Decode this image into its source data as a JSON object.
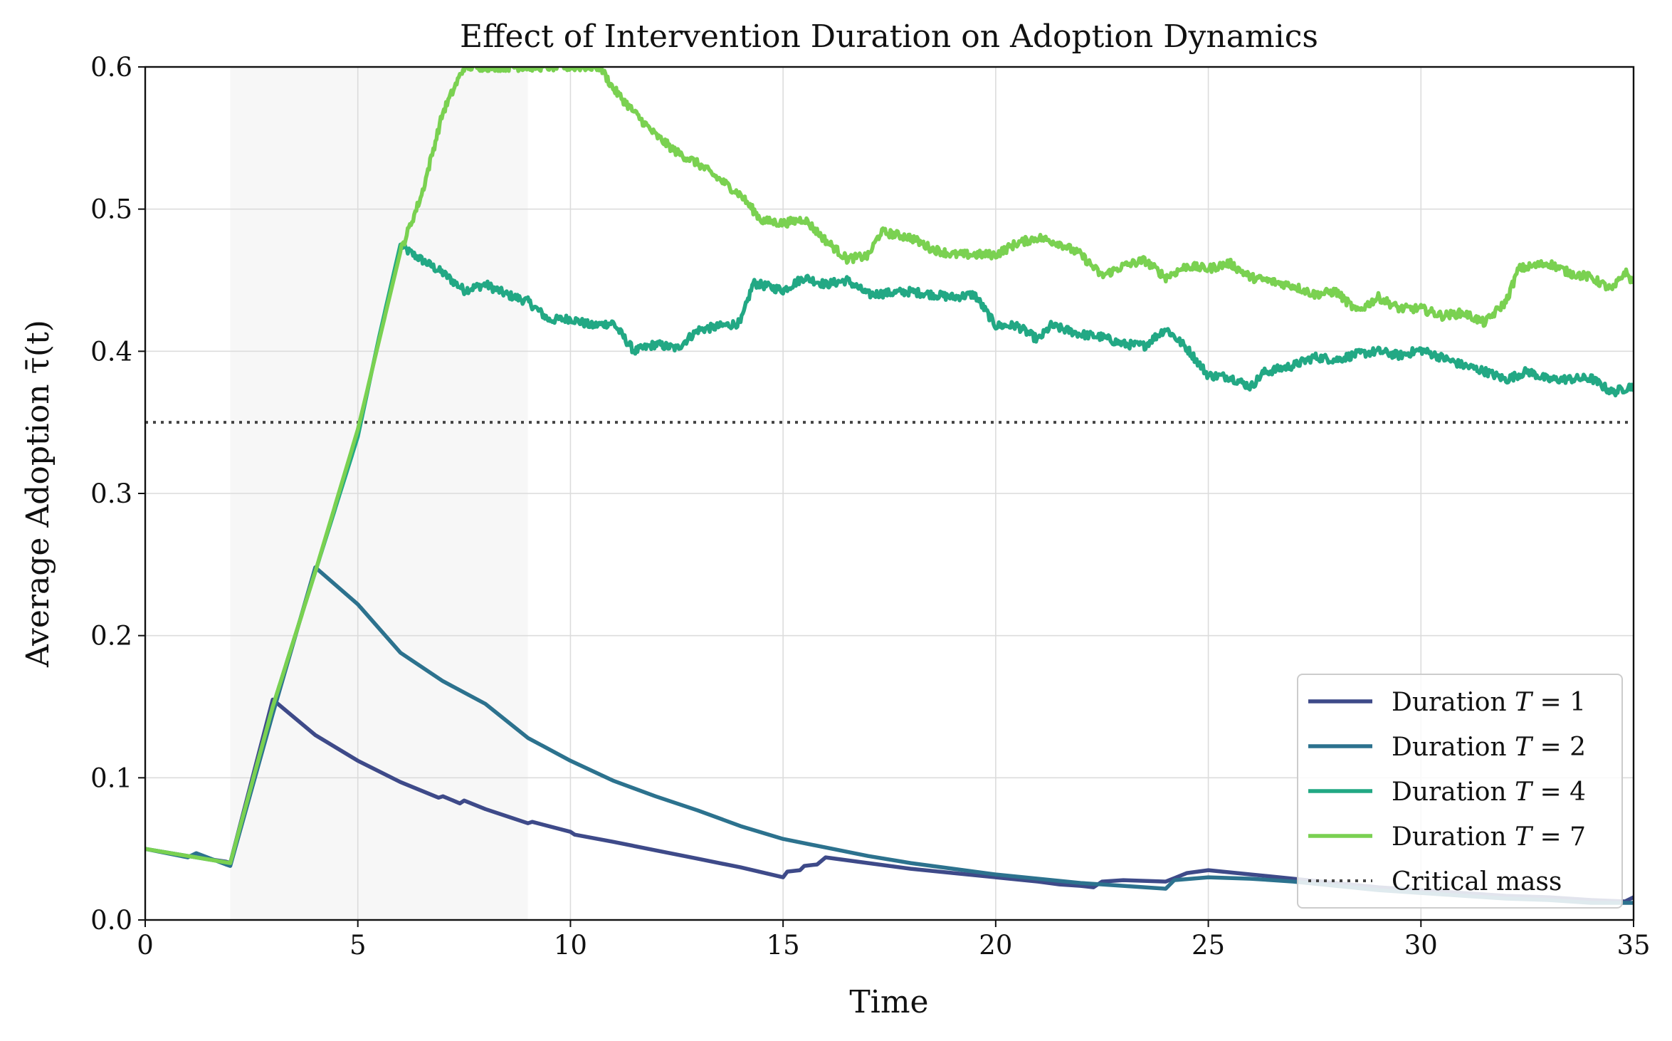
{
  "chart_data": {
    "type": "line",
    "title": "Effect of Intervention Duration on Adoption Dynamics",
    "xlabel": "Time",
    "ylabel": "Average Adoption τ̄(t)",
    "xlim": [
      0,
      35
    ],
    "ylim": [
      0,
      0.6
    ],
    "xticks": [
      0,
      5,
      10,
      15,
      20,
      25,
      30,
      35
    ],
    "xtick_labels": [
      "0",
      "5",
      "10",
      "15",
      "20",
      "25",
      "30",
      "35"
    ],
    "yticks": [
      0,
      0.1,
      0.2,
      0.3,
      0.4,
      0.5,
      0.6
    ],
    "ytick_labels": [
      "0.0",
      "0.1",
      "0.2",
      "0.3",
      "0.4",
      "0.5",
      "0.6"
    ],
    "grid": true,
    "legend_position": "lower-right",
    "shaded_region": {
      "x_start": 2,
      "x_end": 9,
      "color": "#f2f2f2"
    },
    "reference_line": {
      "name": "Critical mass",
      "y": 0.35,
      "style": "dotted",
      "color": "#444444"
    },
    "series": [
      {
        "name": "Duration T = 1",
        "label_prefix": "Duration ",
        "label_var": "T",
        "label_suffix": " = 1",
        "color": "#3e4a89",
        "points": [
          [
            0,
            0.05
          ],
          [
            1,
            0.045
          ],
          [
            1.9,
            0.041
          ],
          [
            2,
            0.04
          ],
          [
            3,
            0.155
          ],
          [
            4,
            0.13
          ],
          [
            5,
            0.112
          ],
          [
            6,
            0.097
          ],
          [
            6.9,
            0.086
          ],
          [
            7,
            0.087
          ],
          [
            7.4,
            0.082
          ],
          [
            7.5,
            0.084
          ],
          [
            8,
            0.078
          ],
          [
            9,
            0.068
          ],
          [
            9.1,
            0.069
          ],
          [
            10,
            0.062
          ],
          [
            10.1,
            0.06
          ],
          [
            11,
            0.055
          ],
          [
            12,
            0.049
          ],
          [
            13,
            0.043
          ],
          [
            14,
            0.037
          ],
          [
            15,
            0.03
          ],
          [
            15.1,
            0.034
          ],
          [
            15.4,
            0.035
          ],
          [
            15.5,
            0.038
          ],
          [
            15.8,
            0.039
          ],
          [
            16,
            0.044
          ],
          [
            17,
            0.04
          ],
          [
            18,
            0.036
          ],
          [
            19,
            0.033
          ],
          [
            20,
            0.03
          ],
          [
            21,
            0.027
          ],
          [
            21.5,
            0.025
          ],
          [
            22,
            0.024
          ],
          [
            22.3,
            0.023
          ],
          [
            22.5,
            0.027
          ],
          [
            23,
            0.028
          ],
          [
            24,
            0.027
          ],
          [
            24.5,
            0.033
          ],
          [
            25,
            0.035
          ],
          [
            26,
            0.032
          ],
          [
            27,
            0.029
          ],
          [
            28,
            0.026
          ],
          [
            29,
            0.023
          ],
          [
            30,
            0.021
          ],
          [
            31,
            0.019
          ],
          [
            32,
            0.017
          ],
          [
            33,
            0.016
          ],
          [
            34,
            0.014
          ],
          [
            34.8,
            0.013
          ],
          [
            35,
            0.016
          ]
        ]
      },
      {
        "name": "Duration T = 2",
        "label_prefix": "Duration ",
        "label_var": "T",
        "label_suffix": " = 2",
        "color": "#2c728e",
        "points": [
          [
            0,
            0.05
          ],
          [
            1,
            0.044
          ],
          [
            1.2,
            0.047
          ],
          [
            1.9,
            0.039
          ],
          [
            2,
            0.038
          ],
          [
            3,
            0.145
          ],
          [
            4,
            0.248
          ],
          [
            5,
            0.222
          ],
          [
            6,
            0.188
          ],
          [
            7,
            0.168
          ],
          [
            8,
            0.152
          ],
          [
            9,
            0.128
          ],
          [
            10,
            0.112
          ],
          [
            11,
            0.098
          ],
          [
            12,
            0.087
          ],
          [
            13,
            0.077
          ],
          [
            14,
            0.066
          ],
          [
            15,
            0.057
          ],
          [
            16,
            0.051
          ],
          [
            17,
            0.045
          ],
          [
            18,
            0.04
          ],
          [
            19,
            0.036
          ],
          [
            20,
            0.032
          ],
          [
            21,
            0.029
          ],
          [
            22,
            0.026
          ],
          [
            23,
            0.024
          ],
          [
            24,
            0.022
          ],
          [
            24.2,
            0.028
          ],
          [
            25,
            0.03
          ],
          [
            26,
            0.029
          ],
          [
            27,
            0.027
          ],
          [
            28,
            0.024
          ],
          [
            29,
            0.021
          ],
          [
            30,
            0.019
          ],
          [
            31,
            0.017
          ],
          [
            32,
            0.015
          ],
          [
            33,
            0.014
          ],
          [
            34,
            0.012
          ],
          [
            35,
            0.012
          ]
        ]
      },
      {
        "name": "Duration T = 4",
        "label_prefix": "Duration ",
        "label_var": "T",
        "label_suffix": " = 4",
        "color": "#22a884",
        "points": [
          [
            0,
            0.05
          ],
          [
            1,
            0.045
          ],
          [
            2,
            0.04
          ],
          [
            3,
            0.15
          ],
          [
            4,
            0.245
          ],
          [
            5,
            0.34
          ],
          [
            5.5,
            0.41
          ],
          [
            6,
            0.475
          ],
          [
            6.2,
            0.47
          ],
          [
            7,
            0.455
          ],
          [
            7.5,
            0.443
          ],
          [
            8,
            0.447
          ],
          [
            8.5,
            0.44
          ],
          [
            9,
            0.435
          ],
          [
            9.5,
            0.422
          ],
          [
            10,
            0.423
          ],
          [
            10.5,
            0.418
          ],
          [
            11,
            0.42
          ],
          [
            11.5,
            0.4
          ],
          [
            12,
            0.405
          ],
          [
            12.5,
            0.402
          ],
          [
            13,
            0.415
          ],
          [
            14,
            0.42
          ],
          [
            14.3,
            0.448
          ],
          [
            15,
            0.443
          ],
          [
            15.5,
            0.452
          ],
          [
            16,
            0.447
          ],
          [
            16.5,
            0.45
          ],
          [
            17,
            0.44
          ],
          [
            18,
            0.442
          ],
          [
            18.5,
            0.44
          ],
          [
            19,
            0.438
          ],
          [
            19.5,
            0.44
          ],
          [
            20,
            0.418
          ],
          [
            20.5,
            0.418
          ],
          [
            21,
            0.408
          ],
          [
            21.3,
            0.418
          ],
          [
            22,
            0.412
          ],
          [
            22.5,
            0.41
          ],
          [
            23,
            0.405
          ],
          [
            23.5,
            0.404
          ],
          [
            24,
            0.416
          ],
          [
            24.5,
            0.402
          ],
          [
            25,
            0.383
          ],
          [
            25.5,
            0.382
          ],
          [
            26,
            0.375
          ],
          [
            26.3,
            0.385
          ],
          [
            27,
            0.39
          ],
          [
            27.5,
            0.396
          ],
          [
            28,
            0.394
          ],
          [
            28.5,
            0.398
          ],
          [
            29,
            0.4
          ],
          [
            29.5,
            0.397
          ],
          [
            30,
            0.401
          ],
          [
            31,
            0.39
          ],
          [
            31.5,
            0.386
          ],
          [
            32,
            0.38
          ],
          [
            32.5,
            0.386
          ],
          [
            33,
            0.38
          ],
          [
            34,
            0.381
          ],
          [
            34.5,
            0.371
          ],
          [
            35,
            0.376
          ]
        ]
      },
      {
        "name": "Duration T = 7",
        "label_prefix": "Duration ",
        "label_var": "T",
        "label_suffix": " = 7",
        "color": "#7ad151",
        "points": [
          [
            0,
            0.05
          ],
          [
            1,
            0.045
          ],
          [
            2,
            0.04
          ],
          [
            3,
            0.15
          ],
          [
            4,
            0.245
          ],
          [
            5,
            0.345
          ],
          [
            6,
            0.47
          ],
          [
            6.5,
            0.51
          ],
          [
            7,
            0.568
          ],
          [
            7.5,
            0.6
          ],
          [
            10.7,
            0.6
          ],
          [
            11,
            0.585
          ],
          [
            11.5,
            0.568
          ],
          [
            12,
            0.552
          ],
          [
            12.5,
            0.54
          ],
          [
            13,
            0.532
          ],
          [
            14,
            0.51
          ],
          [
            14.5,
            0.492
          ],
          [
            15,
            0.49
          ],
          [
            15.5,
            0.493
          ],
          [
            16,
            0.478
          ],
          [
            16.5,
            0.465
          ],
          [
            17,
            0.467
          ],
          [
            17.3,
            0.484
          ],
          [
            18,
            0.48
          ],
          [
            18.5,
            0.472
          ],
          [
            19,
            0.468
          ],
          [
            20,
            0.468
          ],
          [
            20.5,
            0.476
          ],
          [
            21,
            0.48
          ],
          [
            21.5,
            0.476
          ],
          [
            22,
            0.468
          ],
          [
            22.5,
            0.453
          ],
          [
            23,
            0.46
          ],
          [
            23.5,
            0.464
          ],
          [
            24,
            0.452
          ],
          [
            24.5,
            0.46
          ],
          [
            25,
            0.458
          ],
          [
            25.5,
            0.462
          ],
          [
            26,
            0.452
          ],
          [
            27,
            0.446
          ],
          [
            27.5,
            0.44
          ],
          [
            28,
            0.442
          ],
          [
            28.5,
            0.428
          ],
          [
            29,
            0.438
          ],
          [
            29.5,
            0.43
          ],
          [
            30,
            0.43
          ],
          [
            30.5,
            0.425
          ],
          [
            31,
            0.427
          ],
          [
            31.5,
            0.42
          ],
          [
            32,
            0.435
          ],
          [
            32.3,
            0.458
          ],
          [
            33,
            0.462
          ],
          [
            33.5,
            0.455
          ],
          [
            34,
            0.452
          ],
          [
            34.5,
            0.443
          ],
          [
            34.8,
            0.456
          ],
          [
            35,
            0.448
          ]
        ]
      }
    ]
  }
}
